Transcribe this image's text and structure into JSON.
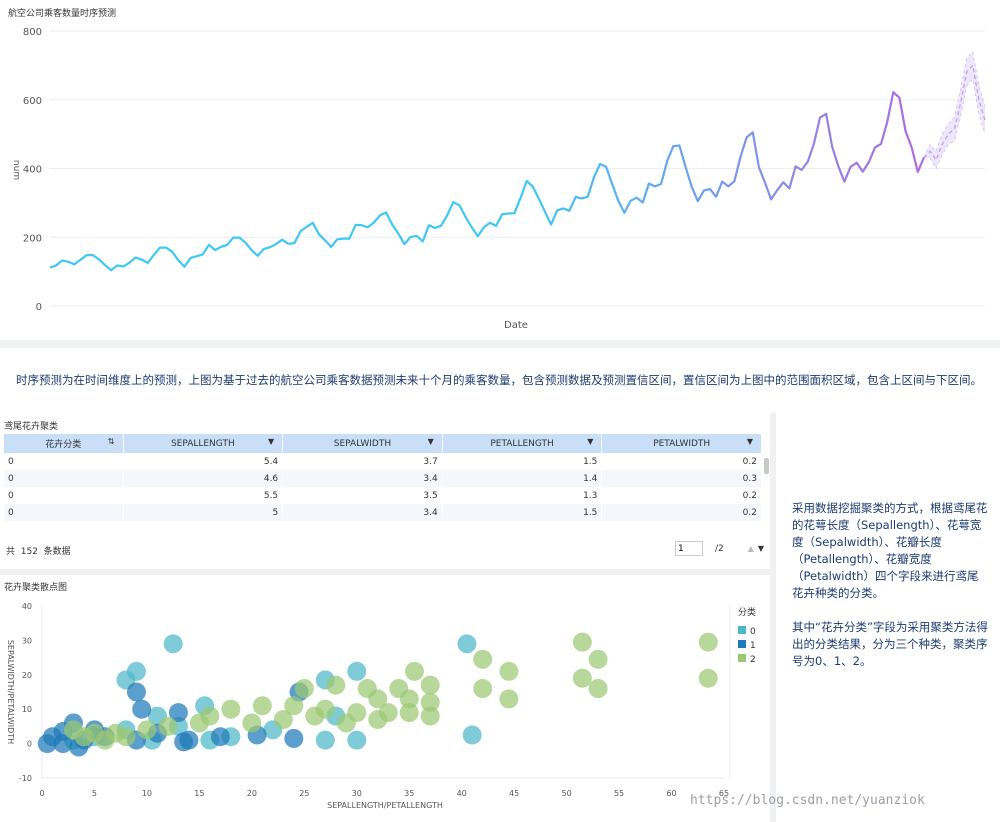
{
  "line_chart": {
    "title": "航空公司乘客数量时序预测",
    "xlabel": "Date",
    "ylabel": "num",
    "y_ticks": [
      "800",
      "600",
      "400",
      "200",
      "0"
    ],
    "colors": {
      "line_start": "#3dc8f5",
      "line_end": "#b06ae3",
      "band": "#e6e0fb",
      "forecast": "#c99be6"
    }
  },
  "chart_data": [
    {
      "type": "line",
      "title": "航空公司乘客数量时序预测",
      "xlabel": "Date",
      "ylabel": "num",
      "ylim": [
        0,
        800
      ],
      "grid": true,
      "x": "monthly index 1..144 (actual), 145..154 (forecast)",
      "series": [
        {
          "values": [
            112,
            118,
            132,
            129,
            121,
            135,
            148,
            148,
            136,
            119,
            104,
            118,
            115,
            126,
            141,
            135,
            125,
            149,
            170,
            170,
            158,
            133,
            114,
            140,
            145,
            150,
            178,
            163,
            172,
            178,
            199,
            199,
            184,
            162,
            146,
            166,
            171,
            180,
            193,
            181,
            183,
            218,
            230,
            242,
            209,
            191,
            172,
            194,
            196,
            196,
            236,
            235,
            229,
            243,
            264,
            272,
            237,
            211,
            180,
            201,
            204,
            188,
            235,
            227,
            234,
            264,
            302,
            293,
            259,
            229,
            203,
            229,
            242,
            233,
            267,
            269,
            270,
            315,
            364,
            347,
            312,
            274,
            237,
            278,
            284,
            277,
            317,
            313,
            318,
            374,
            413,
            405,
            355,
            306,
            271,
            306,
            315,
            301,
            356,
            348,
            355,
            422,
            465,
            467,
            404,
            347,
            305,
            336,
            340,
            318,
            362,
            348,
            363,
            435,
            491,
            505,
            404,
            359,
            310,
            337,
            360,
            342,
            406,
            396,
            420,
            472,
            548,
            559,
            463,
            407,
            362,
            405,
            417,
            391,
            419,
            461,
            472,
            535,
            622,
            606,
            508,
            461,
            390,
            432
          ]
        },
        {
          "name": "forecast",
          "values": [
            450,
            425,
            470,
            500,
            515,
            590,
            680,
            700,
            600,
            540
          ],
          "lower": [
            430,
            400,
            440,
            470,
            480,
            550,
            640,
            660,
            560,
            500
          ],
          "upper": [
            470,
            450,
            500,
            530,
            550,
            630,
            720,
            740,
            640,
            580
          ]
        }
      ]
    },
    {
      "type": "scatter",
      "title": "花卉聚类散点图",
      "xlabel": "SEPALLENGTH/PETALLENGTH",
      "ylabel": "SEPALWIDTH/PETALWIDTH",
      "xlim": [
        0,
        65
      ],
      "ylim": [
        -10,
        40
      ],
      "legend_title": "分类",
      "legend": "right",
      "series": [
        {
          "name": "0",
          "color": "#4db8c9",
          "points": [
            [
              12.5,
              29
            ],
            [
              40.5,
              29
            ],
            [
              9,
              21
            ],
            [
              8,
              18.5
            ],
            [
              27,
              18.5
            ],
            [
              30,
              21
            ],
            [
              15.5,
              11
            ],
            [
              11,
              8
            ],
            [
              28,
              8
            ],
            [
              16,
              1
            ],
            [
              27,
              1
            ],
            [
              30,
              1
            ],
            [
              41,
              2.5
            ],
            [
              10.5,
              1
            ],
            [
              5,
              2
            ],
            [
              8,
              4
            ],
            [
              13,
              5
            ],
            [
              3,
              1
            ],
            [
              18,
              2
            ],
            [
              22,
              4
            ]
          ]
        },
        {
          "name": "1",
          "color": "#1e7ab8",
          "points": [
            [
              9,
              15
            ],
            [
              24.5,
              15
            ],
            [
              9.5,
              10
            ],
            [
              13,
              9
            ],
            [
              3,
              6
            ],
            [
              2,
              3.5
            ],
            [
              1,
              2
            ],
            [
              4,
              1
            ],
            [
              6,
              2
            ],
            [
              0.5,
              0
            ],
            [
              2,
              0
            ],
            [
              3.5,
              -1
            ],
            [
              5,
              4
            ],
            [
              9,
              1
            ],
            [
              11,
              3
            ],
            [
              14,
              1
            ],
            [
              17,
              2
            ],
            [
              20.5,
              2.5
            ],
            [
              24,
              1.5
            ],
            [
              13.5,
              0.5
            ]
          ]
        },
        {
          "name": "2",
          "color": "#9cc873",
          "points": [
            [
              51.5,
              29.5
            ],
            [
              63.5,
              29.5
            ],
            [
              42,
              24.5
            ],
            [
              53,
              24.5
            ],
            [
              44.5,
              21
            ],
            [
              35.5,
              21
            ],
            [
              51.5,
              19
            ],
            [
              63.5,
              19
            ],
            [
              42,
              16
            ],
            [
              53,
              16
            ],
            [
              44.5,
              13
            ],
            [
              37,
              17
            ],
            [
              34,
              16
            ],
            [
              31,
              16
            ],
            [
              28,
              17
            ],
            [
              25,
              16
            ],
            [
              32,
              13
            ],
            [
              35,
              13
            ],
            [
              37,
              12
            ],
            [
              33,
              9
            ],
            [
              30,
              9
            ],
            [
              27,
              10
            ],
            [
              24,
              11
            ],
            [
              21,
              11
            ],
            [
              18,
              10
            ],
            [
              16,
              8
            ],
            [
              20,
              6
            ],
            [
              23,
              7
            ],
            [
              26,
              8
            ],
            [
              29,
              6
            ],
            [
              32,
              7
            ],
            [
              35,
              9
            ],
            [
              37,
              8
            ],
            [
              15,
              6
            ],
            [
              12,
              5
            ],
            [
              10,
              4
            ],
            [
              7,
              3
            ],
            [
              5,
              3
            ],
            [
              4,
              2
            ],
            [
              6,
              1
            ],
            [
              8,
              2
            ],
            [
              3,
              4
            ]
          ]
        }
      ]
    }
  ],
  "description_1": "时序预测为在时间维度上的预测，上图为基于过去的航空公司乘客数据预测未来十个月的乘客数量，包含预测数据及预测置信区间，置信区间为上图中的范围面积区域，包含上区间与下区间。",
  "table_widget": {
    "title": "鸢尾花卉聚类",
    "columns": [
      "花卉分类",
      "SEPALLENGTH",
      "SEPALWIDTH",
      "PETALLENGTH",
      "PETALWIDTH"
    ],
    "rows": [
      [
        "0",
        "5.4",
        "3.7",
        "1.5",
        "0.2"
      ],
      [
        "0",
        "4.6",
        "3.4",
        "1.4",
        "0.3"
      ],
      [
        "0",
        "5.5",
        "3.5",
        "1.3",
        "0.2"
      ],
      [
        "0",
        "5",
        "3.4",
        "1.5",
        "0.2"
      ]
    ],
    "count_prefix": "共",
    "count": "152",
    "count_suffix": "条数据",
    "page_current": "1",
    "page_total": "/2"
  },
  "description_2": {
    "para1": "采用数据挖掘聚类的方式，根据鸢尾花的花萼长度（Sepallength）、花萼宽度（Sepalwidth）、花瓣长度（Petallength）、花瓣宽度（Petalwidth）四个字段来进行鸢尾花卉种类的分类。",
    "para2": "其中“花卉分类”字段为采用聚类方法得出的分类结果，分为三个种类，聚类序号为0、1、2。"
  },
  "scatter_chart": {
    "title": "花卉聚类散点图",
    "xlabel": "SEPALLENGTH/PETALLENGTH",
    "ylabel": "SEPALWIDTH/PETALWIDTH",
    "legend_title": "分类",
    "legend_items": [
      "0",
      "1",
      "2"
    ],
    "x_ticks": [
      "0",
      "5",
      "10",
      "15",
      "20",
      "25",
      "30",
      "35",
      "40",
      "45",
      "50",
      "55",
      "60",
      "65"
    ],
    "y_ticks": [
      "40",
      "30",
      "20",
      "10",
      "0",
      "-10"
    ]
  },
  "watermark": "https://blog.csdn.net/yuanziok"
}
